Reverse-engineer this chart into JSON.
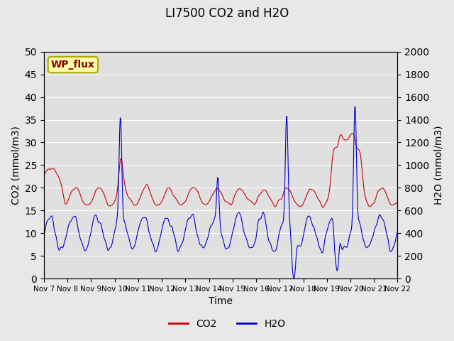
{
  "title": "LI7500 CO2 and H2O",
  "xlabel": "Time",
  "ylabel_left": "CO2 (mmol/m3)",
  "ylabel_right": "H2O (mmol/m3)",
  "ylim_left": [
    0,
    50
  ],
  "ylim_right": [
    0,
    2000
  ],
  "co2_color": "#cc0000",
  "h2o_color": "#0000cc",
  "background_color": "#e8e8e8",
  "plot_bg_color": "#e0e0e0",
  "annotation_text": "WP_flux",
  "annotation_bg": "#ffffaa",
  "annotation_border": "#aaaa00",
  "annotation_textcolor": "#880000",
  "xtick_labels": [
    "Nov 7",
    "Nov 8",
    "Nov 9",
    "Nov 10",
    "Nov 11",
    "Nov 12",
    "Nov 13",
    "Nov 14",
    "Nov 15",
    "Nov 16",
    "Nov 17",
    "Nov 18",
    "Nov 19",
    "Nov 20",
    "Nov 21",
    "Nov 22"
  ],
  "yticks_left": [
    0,
    5,
    10,
    15,
    20,
    25,
    30,
    35,
    40,
    45,
    50
  ],
  "yticks_right": [
    0,
    200,
    400,
    600,
    800,
    1000,
    1200,
    1400,
    1600,
    1800,
    2000
  ],
  "legend_entries": [
    "CO2",
    "H2O"
  ],
  "seed": 42
}
